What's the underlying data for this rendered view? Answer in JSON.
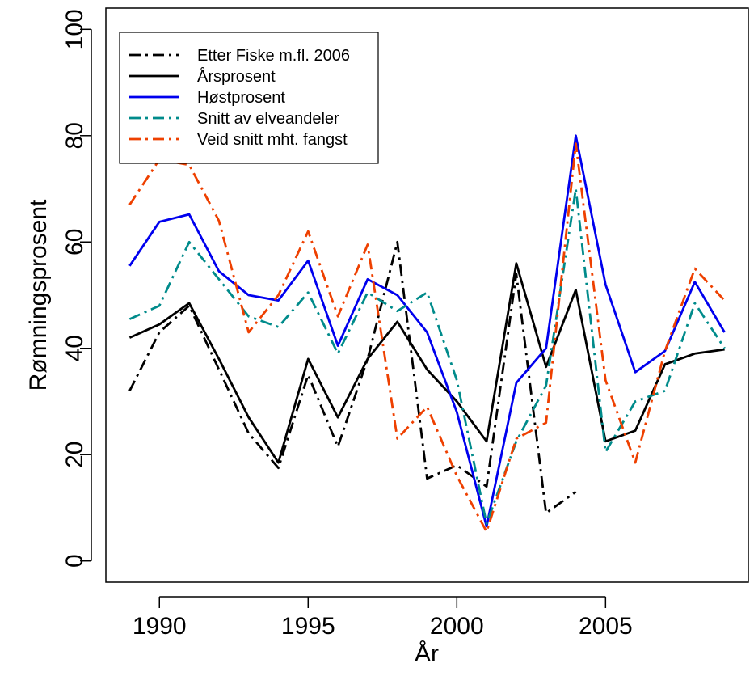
{
  "chart_data": {
    "type": "line",
    "title": "",
    "xlabel": "År",
    "ylabel": "Rømningsprosent",
    "xlim": [
      1988.2,
      2009.8
    ],
    "ylim": [
      -4,
      104
    ],
    "x_ticks": [
      1990,
      1995,
      2000,
      2005
    ],
    "x_tick_labels": [
      "1990",
      "1995",
      "2000",
      "2005"
    ],
    "y_ticks": [
      0,
      20,
      40,
      60,
      80,
      100
    ],
    "y_tick_labels": [
      "0",
      "20",
      "40",
      "60",
      "80",
      "100"
    ],
    "grid": false,
    "legend_position": "top-left",
    "series": [
      {
        "name": "Etter Fiske m.fl. 2006",
        "color": "#000000",
        "dash": "dashdot",
        "x": [
          1989,
          1990,
          1991,
          1992,
          1993,
          1994,
          1995,
          1996,
          1997,
          1998,
          1999,
          2000,
          2001,
          2002,
          2003,
          2004
        ],
        "y": [
          32,
          43,
          48,
          36,
          24,
          17.5,
          35,
          21.5,
          38,
          60,
          15.5,
          18,
          14,
          54,
          9,
          13
        ]
      },
      {
        "name": "Årsprosent",
        "color": "#000000",
        "dash": "solid",
        "x": [
          1989,
          1990,
          1991,
          1992,
          1993,
          1994,
          1995,
          1996,
          1997,
          1998,
          1999,
          2000,
          2001,
          2002,
          2003,
          2004,
          2005,
          2006,
          2007,
          2008,
          2009
        ],
        "y": [
          42,
          44.5,
          48.5,
          38,
          27,
          18.5,
          38,
          27,
          38,
          45,
          36,
          30,
          22.5,
          56,
          36.5,
          51,
          22.5,
          24.5,
          37,
          39,
          39.8
        ]
      },
      {
        "name": "Høstprosent",
        "color": "#0000ee",
        "dash": "solid",
        "x": [
          1989,
          1990,
          1991,
          1992,
          1993,
          1994,
          1995,
          1996,
          1997,
          1998,
          1999,
          2000,
          2001,
          2002,
          2003,
          2004,
          2005,
          2006,
          2007,
          2008,
          2009
        ],
        "y": [
          55.5,
          63.8,
          65.2,
          54.5,
          50,
          49,
          56.5,
          40.5,
          53,
          50,
          43,
          28,
          6.5,
          33.5,
          40,
          80,
          52,
          35.5,
          39.5,
          52.5,
          43
        ]
      },
      {
        "name": "Snitt av elveandeler",
        "color": "#008b8b",
        "dash": "dashdot",
        "x": [
          1989,
          1990,
          1991,
          1992,
          1993,
          1994,
          1995,
          1996,
          1997,
          1998,
          1999,
          2000,
          2001,
          2002,
          2003,
          2004,
          2005,
          2006,
          2007,
          2008,
          2009
        ],
        "y": [
          45.5,
          48,
          60,
          53,
          46,
          44,
          50.5,
          39,
          50.5,
          47,
          50.5,
          34,
          7,
          22.5,
          33,
          70,
          20.5,
          30,
          32,
          48.5,
          40
        ]
      },
      {
        "name": "Veid snitt mht. fangst",
        "color": "#ee4000",
        "dash": "dashdot",
        "x": [
          1989,
          1990,
          1991,
          1992,
          1993,
          1994,
          1995,
          1996,
          1997,
          1998,
          1999,
          2000,
          2001,
          2002,
          2003,
          2004,
          2005,
          2006,
          2007,
          2008,
          2009
        ],
        "y": [
          67,
          75.5,
          74.5,
          64,
          43,
          50,
          62,
          46,
          59.5,
          23,
          29,
          16,
          5.5,
          23,
          26,
          78.5,
          34,
          18.5,
          39.5,
          55,
          49
        ]
      }
    ]
  }
}
